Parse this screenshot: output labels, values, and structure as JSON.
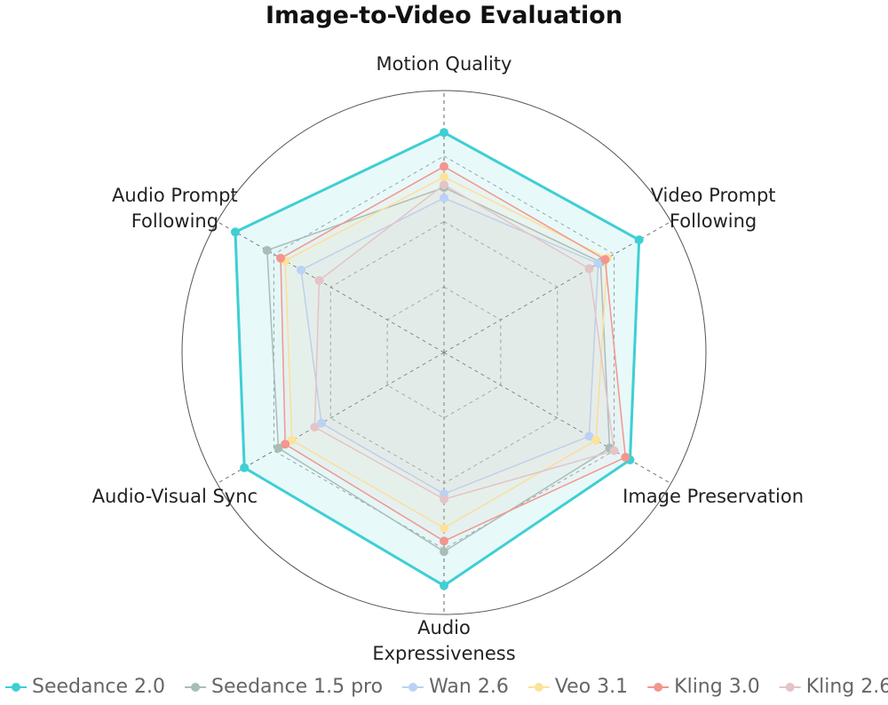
{
  "chart_data": {
    "type": "radar",
    "title": "Image-to-Video Evaluation",
    "categories": [
      "Motion Quality",
      "Video Prompt Following",
      "Image Preservation",
      "Audio Expressiveness",
      "Audio-Visual Sync",
      "Audio Prompt Following"
    ],
    "ylim": [
      0,
      100
    ],
    "yticks": [
      25,
      50,
      75
    ],
    "grid": true,
    "series": [
      {
        "name": "Seedance 2.0",
        "color": "#3ecfd4",
        "values": [
          84,
          86,
          82,
          89,
          88,
          92
        ]
      },
      {
        "name": "Seedance 1.5 pro",
        "color": "#a9bdb8",
        "values": [
          63,
          69,
          73,
          76,
          73,
          78
        ]
      },
      {
        "name": "Wan 2.6",
        "color": "#b9d2f5",
        "values": [
          59,
          68,
          64,
          54,
          54,
          63
        ]
      },
      {
        "name": "Veo 3.1",
        "color": "#fde29a",
        "values": [
          67,
          72,
          67,
          67,
          67,
          70
        ]
      },
      {
        "name": "Kling 3.0",
        "color": "#f2968e",
        "values": [
          71,
          71,
          80,
          72,
          70,
          72
        ]
      },
      {
        "name": "Kling 2.6",
        "color": "#e3c4c7",
        "values": [
          64,
          64,
          75,
          56,
          57,
          55
        ]
      }
    ]
  }
}
